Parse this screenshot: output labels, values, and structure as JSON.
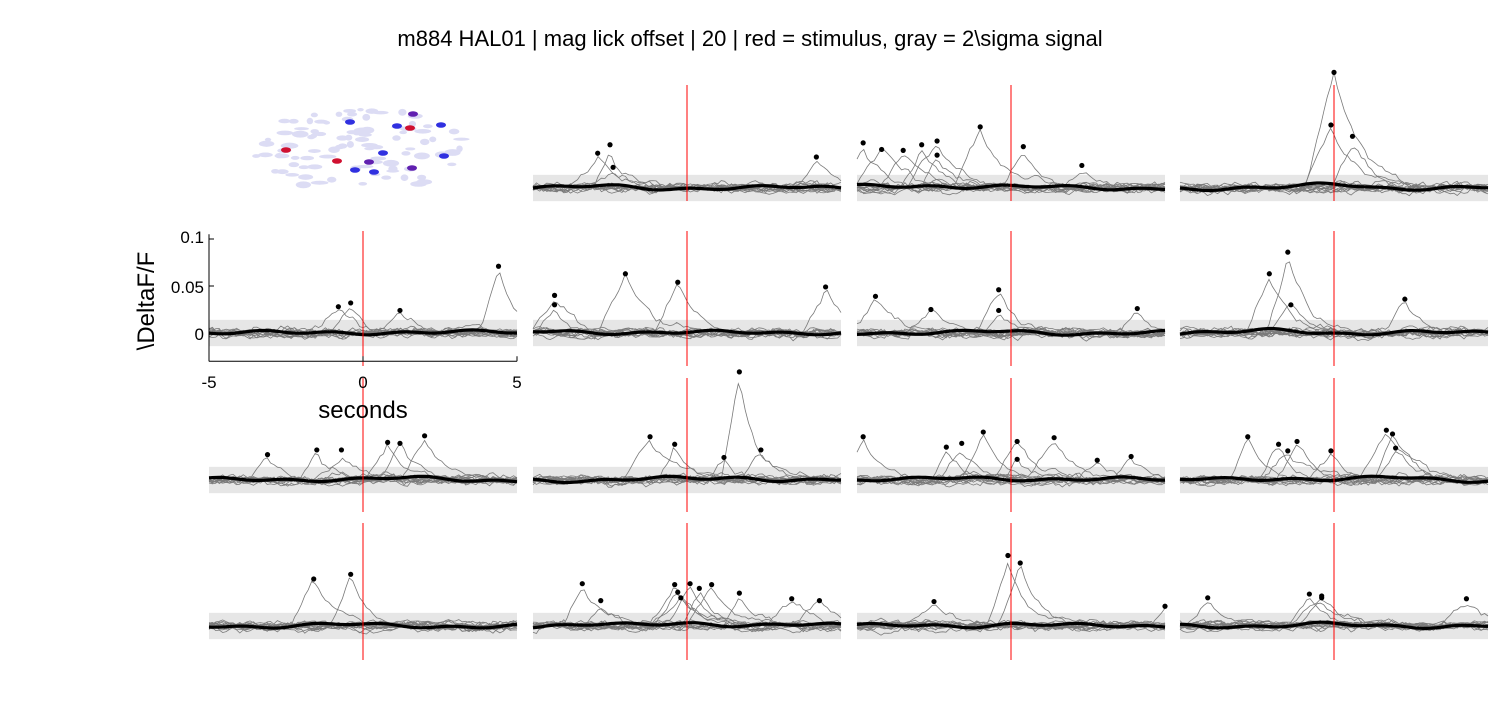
{
  "title": "m884 HAL01 | mag lick  offset | 20 | red = stimulus, gray = 2\\sigma signal",
  "chart_data": {
    "type": "line",
    "grid": false,
    "layout": "4x4 small multiples; top-left panel is a cell-footprint map",
    "axes_shown_panel": "row 2, column 1",
    "xlabel": "seconds",
    "ylabel": "\\DeltaF/F",
    "xlim": [
      -5,
      5
    ],
    "ylim": [
      -0.025,
      0.105
    ],
    "x_ticks": [
      "-5",
      "0",
      "5"
    ],
    "y_ticks": [
      "0",
      "0.05",
      "0.1"
    ],
    "stimulus_time": 0,
    "stimulus_color": "#ff0000",
    "band_color": "#e6e6e6",
    "trace_color": "#7a7a7a",
    "mean_color": "#000000",
    "footprint_colors": {
      "background": "#dcdcf4",
      "blue": "#3030e0",
      "red": "#d01030",
      "purple": "#6020b0"
    },
    "panels": [
      {
        "row": 1,
        "col": 2,
        "band": 0.014,
        "peak_x": [
          -2.9,
          -2.5,
          -2.4,
          4.2
        ],
        "peak_y": [
          0.037,
          0.046,
          0.022,
          0.033
        ]
      },
      {
        "row": 1,
        "col": 3,
        "band": 0.014,
        "peak_x": [
          -4.8,
          -4.2,
          -3.5,
          -2.9,
          -2.4,
          -2.4,
          -1.0,
          0.4,
          2.3
        ],
        "peak_y": [
          0.048,
          0.041,
          0.04,
          0.046,
          0.05,
          0.035,
          0.065,
          0.044,
          0.024
        ]
      },
      {
        "row": 1,
        "col": 4,
        "band": 0.014,
        "peak_x": [
          0.0,
          -0.1,
          0.6
        ],
        "peak_y": [
          0.123,
          0.067,
          0.055
        ]
      },
      {
        "row": 2,
        "col": 1,
        "band": 0.014,
        "peak_x": [
          -0.8,
          -0.4,
          1.2,
          4.4
        ],
        "peak_y": [
          0.028,
          0.032,
          0.024,
          0.071
        ]
      },
      {
        "row": 2,
        "col": 2,
        "band": 0.014,
        "peak_x": [
          -4.3,
          -4.3,
          -2.0,
          -0.3,
          4.5
        ],
        "peak_y": [
          0.04,
          0.03,
          0.063,
          0.054,
          0.049
        ]
      },
      {
        "row": 2,
        "col": 3,
        "band": 0.014,
        "peak_x": [
          -4.4,
          -2.6,
          -0.4,
          -0.4,
          4.1
        ],
        "peak_y": [
          0.039,
          0.025,
          0.046,
          0.024,
          0.026
        ]
      },
      {
        "row": 2,
        "col": 4,
        "band": 0.014,
        "peak_x": [
          -2.1,
          -1.5,
          -1.4,
          2.3
        ],
        "peak_y": [
          0.063,
          0.086,
          0.03,
          0.036
        ]
      },
      {
        "row": 3,
        "col": 1,
        "band": 0.014,
        "peak_x": [
          -3.1,
          -1.5,
          -0.7,
          0.8,
          1.2,
          2.0
        ],
        "peak_y": [
          0.027,
          0.032,
          0.032,
          0.04,
          0.039,
          0.047
        ]
      },
      {
        "row": 3,
        "col": 2,
        "band": 0.014,
        "peak_x": [
          -1.2,
          -0.4,
          1.2,
          1.7,
          2.4
        ],
        "peak_y": [
          0.046,
          0.038,
          0.024,
          0.115,
          0.032
        ]
      },
      {
        "row": 3,
        "col": 3,
        "band": 0.014,
        "peak_x": [
          -4.8,
          -2.1,
          -1.6,
          -0.9,
          0.2,
          0.2,
          1.4,
          2.8,
          3.9
        ],
        "peak_y": [
          0.046,
          0.035,
          0.039,
          0.051,
          0.041,
          0.022,
          0.045,
          0.021,
          0.025
        ]
      },
      {
        "row": 3,
        "col": 4,
        "band": 0.014,
        "peak_x": [
          -2.8,
          -1.8,
          -1.5,
          -1.2,
          -0.1,
          1.7,
          1.9,
          2.0
        ],
        "peak_y": [
          0.046,
          0.038,
          0.031,
          0.041,
          0.031,
          0.053,
          0.049,
          0.034
        ]
      },
      {
        "row": 4,
        "col": 1,
        "band": 0.014,
        "peak_x": [
          -1.6,
          -0.4
        ],
        "peak_y": [
          0.05,
          0.055
        ]
      },
      {
        "row": 4,
        "col": 2,
        "band": 0.014,
        "peak_x": [
          -3.4,
          -2.8,
          -0.4,
          -0.3,
          -0.2,
          0.1,
          0.4,
          0.8,
          1.7,
          3.4,
          4.3
        ],
        "peak_y": [
          0.045,
          0.027,
          0.044,
          0.036,
          0.03,
          0.045,
          0.04,
          0.044,
          0.035,
          0.029,
          0.027
        ]
      },
      {
        "row": 4,
        "col": 3,
        "band": 0.014,
        "peak_x": [
          -2.5,
          -0.1,
          0.3,
          5.0
        ],
        "peak_y": [
          0.026,
          0.075,
          0.067,
          0.021
        ]
      },
      {
        "row": 4,
        "col": 4,
        "band": 0.014,
        "peak_x": [
          -4.1,
          -0.8,
          -0.4,
          -0.4,
          4.3
        ],
        "peak_y": [
          0.03,
          0.034,
          0.03,
          0.032,
          0.029
        ]
      }
    ]
  }
}
